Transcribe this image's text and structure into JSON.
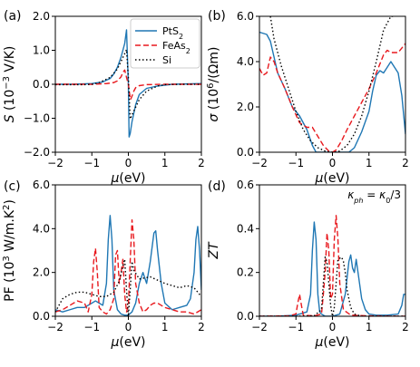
{
  "figure": {
    "legend": {
      "entries": [
        {
          "label": "PtS",
          "sub": "2",
          "color": "#1f77b4",
          "dash": ""
        },
        {
          "label": "FeAs",
          "sub": "2",
          "color": "#e8191e",
          "dash": "6,3"
        },
        {
          "label": "Si",
          "sub": "",
          "color": "#000000",
          "dash": "1.5,2.5"
        }
      ]
    },
    "annotation": {
      "base": "κ",
      "sub1": "ph",
      "eq": " = ",
      "base2": "κ",
      "sub2": "0",
      "tail": "/3"
    }
  },
  "chart_data": [
    {
      "panel": "(a)",
      "type": "line",
      "xlabel": {
        "base": "μ",
        "rest": "(eV)"
      },
      "ylabel": {
        "base": "S",
        "rest": " (10",
        "sup": "−3",
        "tail": " V/K)"
      },
      "xlim": [
        -2,
        2
      ],
      "ylim": [
        -2.0,
        2.0
      ],
      "xticks": [
        "−2",
        "−1",
        "0",
        "1",
        "2"
      ],
      "yticks": [
        "−2.0",
        "−1.0",
        "0.0",
        "1.0",
        "2.0"
      ],
      "legend_position": "top-right",
      "series": [
        {
          "name": "PtS2",
          "color": "#1f77b4",
          "dash": "",
          "x": [
            -2.0,
            -1.5,
            -1.0,
            -0.7,
            -0.5,
            -0.4,
            -0.3,
            -0.2,
            -0.1,
            -0.05,
            0.0,
            0.02,
            0.05,
            0.1,
            0.2,
            0.3,
            0.5,
            0.8,
            1.2,
            1.6,
            2.0
          ],
          "y": [
            0.0,
            0.0,
            0.02,
            0.07,
            0.17,
            0.3,
            0.5,
            0.8,
            1.2,
            1.6,
            0.0,
            -1.55,
            -1.45,
            -1.1,
            -0.6,
            -0.3,
            -0.12,
            -0.05,
            0.0,
            0.01,
            0.02
          ]
        },
        {
          "name": "FeAs2",
          "color": "#e8191e",
          "dash": "6,3",
          "x": [
            -2.0,
            -1.0,
            -0.6,
            -0.4,
            -0.3,
            -0.2,
            -0.15,
            -0.1,
            -0.05,
            0.0,
            0.03,
            0.06,
            0.1,
            0.15,
            0.2,
            0.3,
            0.5,
            1.0,
            2.0
          ],
          "y": [
            0.0,
            0.0,
            0.02,
            0.05,
            0.1,
            0.22,
            0.35,
            0.42,
            0.2,
            0.0,
            -0.25,
            -0.45,
            -0.35,
            -0.2,
            -0.1,
            -0.04,
            -0.01,
            0.0,
            0.0
          ]
        },
        {
          "name": "Si",
          "color": "#000000",
          "dash": "1.5,2.5",
          "x": [
            -2.0,
            -1.2,
            -1.0,
            -0.8,
            -0.5,
            -0.3,
            -0.1,
            -0.05,
            0.0,
            0.05,
            0.1,
            0.3,
            0.5,
            0.8,
            1.0,
            1.5,
            2.0
          ],
          "y": [
            -0.01,
            -0.01,
            0.0,
            0.05,
            0.2,
            0.45,
            0.9,
            1.02,
            0.2,
            -1.02,
            -0.9,
            -0.45,
            -0.2,
            -0.05,
            -0.01,
            0.0,
            0.0
          ]
        }
      ]
    },
    {
      "panel": "(b)",
      "type": "line",
      "xlabel": {
        "base": "μ",
        "rest": "(eV)"
      },
      "ylabel": {
        "base": "σ",
        "rest": " (10",
        "sup": "6",
        "tail": "/(Ωm)"
      },
      "xlim": [
        -2,
        2
      ],
      "ylim": [
        0.0,
        6.0
      ],
      "xticks": [
        "−2",
        "−1",
        "0",
        "1",
        "2"
      ],
      "yticks": [
        "0.0",
        "2.0",
        "4.0",
        "6.0"
      ],
      "series": [
        {
          "name": "PtS2",
          "color": "#1f77b4",
          "dash": "",
          "x": [
            -2.0,
            -1.9,
            -1.8,
            -1.7,
            -1.6,
            -1.5,
            -1.3,
            -1.1,
            -0.9,
            -0.7,
            -0.55,
            -0.45,
            0.0,
            0.45,
            0.6,
            0.8,
            1.0,
            1.1,
            1.2,
            1.3,
            1.4,
            1.6,
            1.8,
            1.9,
            2.0
          ],
          "y": [
            5.3,
            5.25,
            5.2,
            4.9,
            4.2,
            3.5,
            2.8,
            2.0,
            1.6,
            1.0,
            0.3,
            0.0,
            0.0,
            0.0,
            0.2,
            0.9,
            1.8,
            2.7,
            3.4,
            3.6,
            3.5,
            4.0,
            3.5,
            2.5,
            0.8
          ]
        },
        {
          "name": "FeAs2",
          "color": "#e8191e",
          "dash": "6,3",
          "x": [
            -2.0,
            -1.9,
            -1.8,
            -1.7,
            -1.6,
            -1.5,
            -1.3,
            -1.1,
            -0.9,
            -0.7,
            -0.55,
            -0.4,
            -0.25,
            -0.1,
            0.0,
            0.1,
            0.25,
            0.4,
            0.6,
            0.8,
            1.0,
            1.2,
            1.4,
            1.5,
            1.6,
            1.8,
            2.0
          ],
          "y": [
            3.7,
            3.4,
            3.5,
            4.2,
            4.0,
            3.5,
            2.8,
            2.0,
            1.3,
            1.1,
            1.1,
            0.7,
            0.3,
            0.05,
            0.0,
            0.1,
            0.5,
            1.0,
            1.6,
            2.2,
            2.8,
            3.5,
            4.3,
            4.5,
            4.4,
            4.4,
            4.8
          ]
        },
        {
          "name": "Si",
          "color": "#000000",
          "dash": "1.5,2.5",
          "x": [
            -1.7,
            -1.6,
            -1.4,
            -1.2,
            -1.0,
            -0.8,
            -0.6,
            -0.4,
            -0.2,
            -0.1,
            0.0,
            0.1,
            0.2,
            0.4,
            0.6,
            0.8,
            1.0,
            1.2,
            1.4,
            1.6,
            1.7
          ],
          "y": [
            6.0,
            5.0,
            3.8,
            2.8,
            1.8,
            1.0,
            0.5,
            0.2,
            0.05,
            0.02,
            0.0,
            0.02,
            0.05,
            0.3,
            0.8,
            1.6,
            2.7,
            4.0,
            5.4,
            6.0,
            6.0
          ]
        }
      ]
    },
    {
      "panel": "(c)",
      "type": "line",
      "xlabel": {
        "base": "μ",
        "rest": "(eV)"
      },
      "ylabel": {
        "base": "PF",
        "rest": " (10",
        "sup": "3",
        "tail": " W/m.K",
        "sup2": "2",
        "tail2": ")"
      },
      "xlim": [
        -2,
        2
      ],
      "ylim": [
        0.0,
        6.0
      ],
      "xticks": [
        "−2",
        "−1",
        "0",
        "1",
        "2"
      ],
      "yticks": [
        "0.0",
        "2.0",
        "4.0",
        "6.0"
      ],
      "series": [
        {
          "name": "PtS2",
          "color": "#1f77b4",
          "dash": "",
          "x": [
            -2.0,
            -1.8,
            -1.6,
            -1.4,
            -1.2,
            -1.0,
            -0.9,
            -0.8,
            -0.7,
            -0.6,
            -0.55,
            -0.5,
            -0.45,
            -0.4,
            -0.3,
            -0.2,
            -0.1,
            0.0,
            0.1,
            0.2,
            0.3,
            0.4,
            0.5,
            0.6,
            0.7,
            0.75,
            0.8,
            0.9,
            1.0,
            1.2,
            1.4,
            1.6,
            1.7,
            1.8,
            1.85,
            1.9,
            1.95,
            2.0
          ],
          "y": [
            0.3,
            0.2,
            0.3,
            0.4,
            0.4,
            0.6,
            0.7,
            0.6,
            0.5,
            1.5,
            3.5,
            4.6,
            3.5,
            1.2,
            0.3,
            0.1,
            0.05,
            0.05,
            0.2,
            0.6,
            1.5,
            2.0,
            1.5,
            2.5,
            3.8,
            3.9,
            3.0,
            1.5,
            0.6,
            0.3,
            0.4,
            0.5,
            0.8,
            2.0,
            3.5,
            4.1,
            3.0,
            1.2
          ]
        },
        {
          "name": "FeAs2",
          "color": "#e8191e",
          "dash": "6,3",
          "x": [
            -2.0,
            -1.8,
            -1.6,
            -1.4,
            -1.2,
            -1.1,
            -1.0,
            -0.95,
            -0.9,
            -0.85,
            -0.8,
            -0.7,
            -0.6,
            -0.5,
            -0.4,
            -0.35,
            -0.3,
            -0.25,
            -0.2,
            -0.15,
            -0.1,
            -0.05,
            0.0,
            0.05,
            0.1,
            0.15,
            0.2,
            0.3,
            0.4,
            0.5,
            0.6,
            0.7,
            0.8,
            0.9,
            1.0,
            1.2,
            1.4,
            1.6,
            1.8,
            2.0
          ],
          "y": [
            0.2,
            0.3,
            0.5,
            0.7,
            0.6,
            0.2,
            1.0,
            2.5,
            3.1,
            2.0,
            0.4,
            0.2,
            0.1,
            0.3,
            0.8,
            2.8,
            3.0,
            1.5,
            2.0,
            2.6,
            1.0,
            0.2,
            0.5,
            2.5,
            4.4,
            3.5,
            1.5,
            0.6,
            0.2,
            0.3,
            0.5,
            0.6,
            0.6,
            0.5,
            0.4,
            0.3,
            0.2,
            0.2,
            0.1,
            0.3
          ]
        },
        {
          "name": "Si",
          "color": "#000000",
          "dash": "1.5,2.5",
          "x": [
            -2.0,
            -1.8,
            -1.6,
            -1.4,
            -1.2,
            -1.0,
            -0.8,
            -0.6,
            -0.4,
            -0.25,
            -0.15,
            -0.1,
            -0.05,
            0.0,
            0.05,
            0.1,
            0.15,
            0.3,
            0.6,
            1.0,
            1.4,
            1.6,
            1.8,
            2.0
          ],
          "y": [
            0.2,
            0.8,
            1.0,
            1.1,
            1.1,
            1.0,
            0.9,
            0.9,
            1.1,
            1.6,
            2.3,
            2.6,
            1.2,
            0.0,
            1.2,
            2.5,
            2.1,
            1.7,
            1.8,
            1.5,
            1.3,
            1.4,
            1.3,
            0.9
          ]
        }
      ]
    },
    {
      "panel": "(d)",
      "type": "line",
      "xlabel": {
        "base": "μ",
        "rest": "(eV)"
      },
      "ylabel": {
        "base": "ZT",
        "rest": ""
      },
      "xlim": [
        -2,
        2
      ],
      "ylim": [
        0.0,
        0.6
      ],
      "xticks": [
        "−2",
        "−1",
        "0",
        "1",
        "2"
      ],
      "yticks": [
        "0.0",
        "0.2",
        "0.4",
        "0.6"
      ],
      "series": [
        {
          "name": "PtS2",
          "color": "#1f77b4",
          "dash": "",
          "x": [
            -2.0,
            -1.5,
            -1.0,
            -0.7,
            -0.6,
            -0.55,
            -0.5,
            -0.45,
            -0.4,
            -0.35,
            -0.3,
            -0.2,
            0.0,
            0.2,
            0.35,
            0.45,
            0.5,
            0.55,
            0.6,
            0.65,
            0.7,
            0.8,
            0.9,
            1.0,
            1.2,
            1.5,
            1.8,
            1.9,
            1.95,
            2.0
          ],
          "y": [
            0.0,
            0.0,
            0.005,
            0.02,
            0.1,
            0.3,
            0.43,
            0.35,
            0.1,
            0.02,
            0.01,
            0.0,
            0.0,
            0.01,
            0.1,
            0.25,
            0.28,
            0.22,
            0.2,
            0.26,
            0.2,
            0.08,
            0.03,
            0.01,
            0.005,
            0.005,
            0.01,
            0.05,
            0.1,
            0.1
          ]
        },
        {
          "name": "FeAs2",
          "color": "#e8191e",
          "dash": "6,3",
          "x": [
            -2.0,
            -1.2,
            -1.0,
            -0.95,
            -0.9,
            -0.85,
            -0.8,
            -0.5,
            -0.3,
            -0.25,
            -0.2,
            -0.15,
            -0.1,
            -0.05,
            0.0,
            0.05,
            0.1,
            0.15,
            0.2,
            0.3,
            0.5,
            1.0,
            2.0
          ],
          "y": [
            0.0,
            0.002,
            0.01,
            0.06,
            0.1,
            0.05,
            0.005,
            0.002,
            0.01,
            0.1,
            0.2,
            0.38,
            0.3,
            0.08,
            0.1,
            0.35,
            0.46,
            0.35,
            0.15,
            0.03,
            0.005,
            0.002,
            0.0
          ]
        },
        {
          "name": "Si",
          "color": "#000000",
          "dash": "1.5,2.5",
          "x": [
            -2.0,
            -1.0,
            -0.5,
            -0.3,
            -0.25,
            -0.2,
            -0.15,
            -0.1,
            -0.05,
            0.0,
            0.05,
            0.1,
            0.15,
            0.25,
            0.3,
            0.35,
            0.4,
            0.5,
            0.6,
            0.8,
            1.0,
            2.0
          ],
          "y": [
            0.0,
            0.0,
            0.002,
            0.03,
            0.15,
            0.27,
            0.25,
            0.15,
            0.05,
            0.0,
            0.04,
            0.15,
            0.26,
            0.27,
            0.25,
            0.2,
            0.12,
            0.04,
            0.01,
            0.0,
            0.0,
            0.0
          ]
        }
      ]
    }
  ]
}
